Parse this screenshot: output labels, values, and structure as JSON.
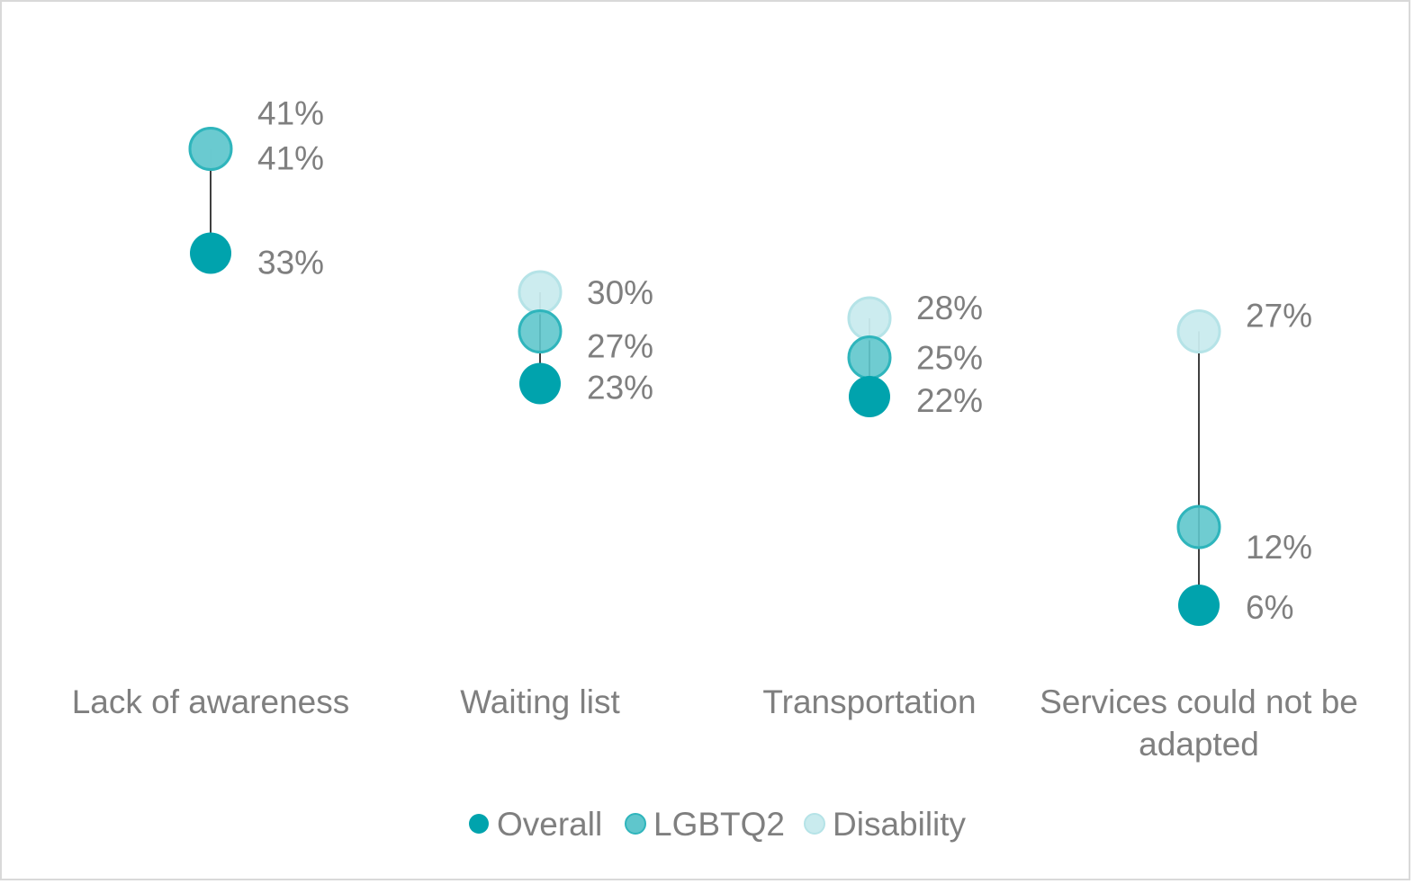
{
  "chart_data": {
    "type": "scatter",
    "categories": [
      "Lack of awareness",
      "Waiting list",
      "Transportation",
      "Services could not be adapted"
    ],
    "series": [
      {
        "name": "Overall",
        "values": [
          33,
          23,
          22,
          6
        ],
        "color": "#00a3ad"
      },
      {
        "name": "LGBTQ2",
        "values": [
          41,
          27,
          25,
          12
        ],
        "color": "#5fc6cc"
      },
      {
        "name": "Disability",
        "values": [
          41,
          30,
          28,
          27
        ],
        "color": "#c9ebee"
      }
    ],
    "value_labels": [
      {
        "Overall": "33%",
        "LGBTQ2": "41%",
        "Disability": "41%"
      },
      {
        "Overall": "23%",
        "LGBTQ2": "27%",
        "Disability": "30%"
      },
      {
        "Overall": "22%",
        "LGBTQ2": "25%",
        "Disability": "28%"
      },
      {
        "Overall": "6%",
        "LGBTQ2": "12%",
        "Disability": "27%"
      }
    ],
    "connector": "min-to-max vertical line per category",
    "legend_position": "bottom",
    "grid": false,
    "ylim": [
      0,
      50
    ]
  }
}
